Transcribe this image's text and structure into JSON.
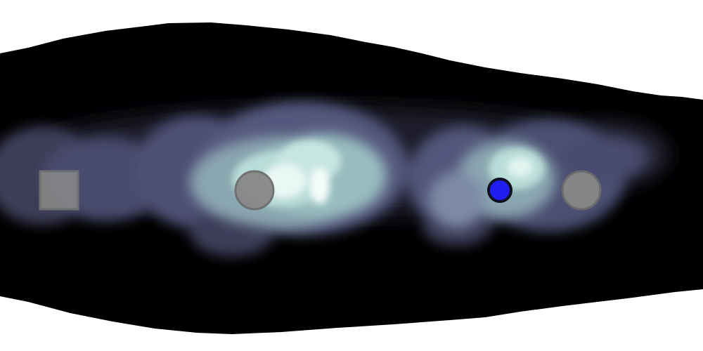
{
  "scene": {
    "background_color": "#ffffff",
    "tunnel_color": "#000000",
    "glow_colors": [
      "#2a2a3a",
      "#4a4b6e",
      "#7b8aa0",
      "#a8d8d2",
      "#f2fbf8"
    ]
  },
  "markers": {
    "start": {
      "shape": "square",
      "color": "#888888"
    },
    "checkpoint": {
      "shape": "circle",
      "color": "#888888"
    },
    "goal": {
      "shape": "circle",
      "color": "#888888"
    },
    "agent": {
      "shape": "circle",
      "color": "#1e1ef0",
      "outline_color": "#111122"
    }
  }
}
